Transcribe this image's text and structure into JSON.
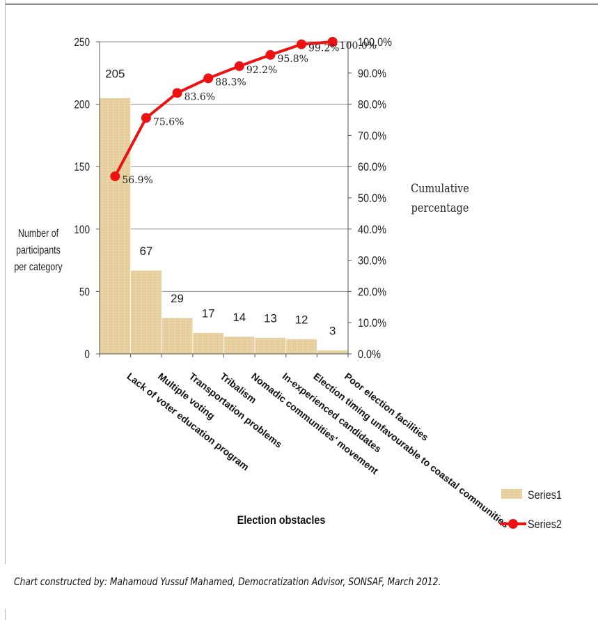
{
  "credit": "Chart constructed by:  Mahamoud Yussuf Mahamed, Democratization Advisor, SONSAF, March 2012.",
  "chart_data": {
    "type": "bar",
    "title": "",
    "xlabel": "Election obstacles",
    "ylabel_lines": [
      "Number of",
      "participants",
      "per category"
    ],
    "y2label_lines": [
      "Cumulative",
      "percentage"
    ],
    "categories": [
      "Lack of voter education program",
      "Multiple voting",
      "Transportation problems",
      "Tribalism",
      "Nomadic communities' movement",
      "In-experienced candidates",
      "Election timing unfavourable to coastal communities",
      "Poor election facilities"
    ],
    "series": [
      {
        "name": "Series1",
        "type": "bar",
        "axis": "left",
        "values": [
          205,
          67,
          29,
          17,
          14,
          13,
          12,
          3
        ],
        "labels": [
          "205",
          "67",
          "29",
          "17",
          "14",
          "13",
          "12",
          "3"
        ]
      },
      {
        "name": "Series2",
        "type": "line",
        "axis": "right",
        "values": [
          56.9,
          75.6,
          83.6,
          88.3,
          92.2,
          95.8,
          99.2,
          100.0
        ],
        "labels": [
          "56.9%",
          "75.6%",
          "83.6%",
          "88.3%",
          "92.2%",
          "95.8%",
          "99.2%",
          "100.0%"
        ]
      }
    ],
    "ylim": [
      0,
      250
    ],
    "yticks": [
      0,
      50,
      100,
      150,
      200,
      250
    ],
    "y2lim": [
      0,
      100
    ],
    "y2ticks": [
      "0.0%",
      "10.0%",
      "20.0%",
      "30.0%",
      "40.0%",
      "50.0%",
      "60.0%",
      "70.0%",
      "80.0%",
      "90.0%",
      "100.0%"
    ],
    "grid": "horizontal",
    "legend_position": "bottom-right",
    "colors": {
      "bar": "#e8cf9c",
      "bar_edge": "#d4b77e",
      "line": "#ee1111",
      "grid": "#8c8c8c"
    }
  }
}
